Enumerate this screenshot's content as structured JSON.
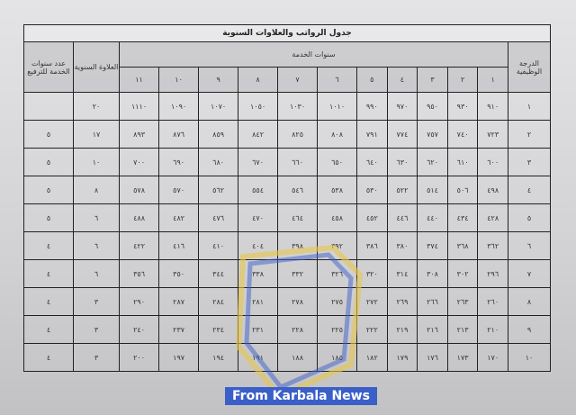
{
  "title": "جدول الرواتب والعلاوات السنوية",
  "headers": {
    "grade": "الدرجة الوظيفية",
    "years_of_service": "سنوات الخدمة",
    "annual_allowance": "العلاوة السنوية",
    "promotion_years": "عدد سنوات الخدمة للترفيع",
    "year_columns": [
      "١",
      "٢",
      "٣",
      "٤",
      "٥",
      "٦",
      "٧",
      "٨",
      "٩",
      "١٠",
      "١١"
    ]
  },
  "rows": [
    {
      "grade": "١",
      "salaries": [
        "٩١٠",
        "٩٣٠",
        "٩٥٠",
        "٩٧٠",
        "٩٩٠",
        "١٠١٠",
        "١٠٣٠",
        "١٠٥٠",
        "١٠٧٠",
        "١٠٩٠",
        "١١١٠"
      ],
      "allowance": "٢٠",
      "promotion": ""
    },
    {
      "grade": "٢",
      "salaries": [
        "٧٢٣",
        "٧٤٠",
        "٧٥٧",
        "٧٧٤",
        "٧٩١",
        "٨٠٨",
        "٨٢٥",
        "٨٤٢",
        "٨٥٩",
        "٨٧٦",
        "٨٩٣"
      ],
      "allowance": "١٧",
      "promotion": "٥"
    },
    {
      "grade": "٣",
      "salaries": [
        "٦٠٠",
        "٦١٠",
        "٦٢٠",
        "٦٣٠",
        "٦٤٠",
        "٦٥٠",
        "٦٦٠",
        "٦٧٠",
        "٦٨٠",
        "٦٩٠",
        "٧٠٠"
      ],
      "allowance": "١٠",
      "promotion": "٥"
    },
    {
      "grade": "٤",
      "salaries": [
        "٤٩٨",
        "٥٠٦",
        "٥١٤",
        "٥٢٢",
        "٥٣٠",
        "٥٣٨",
        "٥٤٦",
        "٥٥٤",
        "٥٦٢",
        "٥٧٠",
        "٥٧٨"
      ],
      "allowance": "٨",
      "promotion": "٥"
    },
    {
      "grade": "٥",
      "salaries": [
        "٤٢٨",
        "٤٣٤",
        "٤٤٠",
        "٤٤٦",
        "٤٥٢",
        "٤٥٨",
        "٤٦٤",
        "٤٧٠",
        "٤٧٦",
        "٤٨٢",
        "٤٨٨"
      ],
      "allowance": "٦",
      "promotion": "٥"
    },
    {
      "grade": "٦",
      "salaries": [
        "٣٦٢",
        "٣٦٨",
        "٣٧٤",
        "٣٨٠",
        "٣٨٦",
        "٣٩٢",
        "٣٩٨",
        "٤٠٤",
        "٤١٠",
        "٤١٦",
        "٤٢٢"
      ],
      "allowance": "٦",
      "promotion": "٤"
    },
    {
      "grade": "٧",
      "salaries": [
        "٢٩٦",
        "٣٠٢",
        "٣٠٨",
        "٣١٤",
        "٣٢٠",
        "٣٢٦",
        "٣٣٢",
        "٣٣٨",
        "٣٤٤",
        "٣٥٠",
        "٣٥٦"
      ],
      "allowance": "٦",
      "promotion": "٤"
    },
    {
      "grade": "٨",
      "salaries": [
        "٢٦٠",
        "٢٦٣",
        "٢٦٦",
        "٢٦٩",
        "٢٧٢",
        "٢٧٥",
        "٢٧٨",
        "٢٨١",
        "٢٨٤",
        "٢٨٧",
        "٢٩٠"
      ],
      "allowance": "٣",
      "promotion": "٤"
    },
    {
      "grade": "٩",
      "salaries": [
        "٢١٠",
        "٢١٣",
        "٢١٦",
        "٢١٩",
        "٢٢٢",
        "٢٢٥",
        "٢٢٨",
        "٢٣١",
        "٢٣٤",
        "٢٣٧",
        "٢٤٠"
      ],
      "allowance": "٣",
      "promotion": "٤"
    },
    {
      "grade": "١٠",
      "salaries": [
        "١٧٠",
        "١٧٣",
        "١٧٦",
        "١٧٩",
        "١٨٢",
        "١٨٥",
        "١٨٨",
        "١٩١",
        "١٩٤",
        "١٩٧",
        "٢٠٠"
      ],
      "allowance": "٣",
      "promotion": "٤"
    }
  ],
  "watermark": {
    "text": "From Karbala News",
    "color": "#3b5fc9",
    "accent": "#e8c64a"
  }
}
